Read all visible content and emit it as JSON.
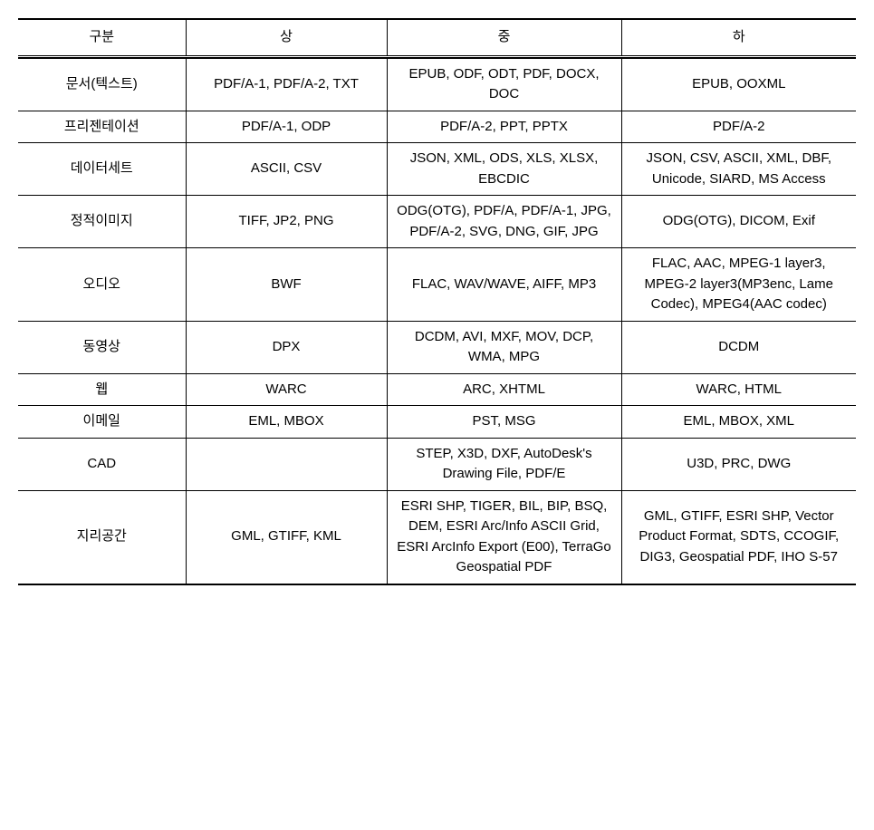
{
  "table": {
    "columns": [
      "구분",
      "상",
      "중",
      "하"
    ],
    "rows": [
      {
        "category": "문서(텍스트)",
        "high": "PDF/A-1, PDF/A-2, TXT",
        "mid": "EPUB, ODF, ODT, PDF, DOCX, DOC",
        "low": "EPUB, OOXML"
      },
      {
        "category": "프리젠테이션",
        "high": "PDF/A-1, ODP",
        "mid": "PDF/A-2, PPT, PPTX",
        "low": "PDF/A-2"
      },
      {
        "category": "데이터세트",
        "high": "ASCII, CSV",
        "mid": "JSON, XML, ODS, XLS, XLSX, EBCDIC",
        "low": "JSON, CSV, ASCII, XML, DBF, Unicode, SIARD, MS Access"
      },
      {
        "category": "정적이미지",
        "high": "TIFF, JP2, PNG",
        "mid": "ODG(OTG), PDF/A, PDF/A-1, JPG, PDF/A-2, SVG, DNG, GIF, JPG",
        "low": "ODG(OTG), DICOM, Exif"
      },
      {
        "category": "오디오",
        "high": "BWF",
        "mid": "FLAC, WAV/WAVE, AIFF, MP3",
        "low": "FLAC, AAC, MPEG-1 layer3, MPEG-2 layer3(MP3enc, Lame Codec), MPEG4(AAC codec)"
      },
      {
        "category": "동영상",
        "high": "DPX",
        "mid": "DCDM, AVI, MXF, MOV, DCP, WMA, MPG",
        "low": "DCDM"
      },
      {
        "category": "웹",
        "high": "WARC",
        "mid": "ARC, XHTML",
        "low": "WARC, HTML"
      },
      {
        "category": "이메일",
        "high": "EML, MBOX",
        "mid": "PST, MSG",
        "low": "EML, MBOX, XML"
      },
      {
        "category": "CAD",
        "high": "",
        "mid": "STEP, X3D, DXF, AutoDesk's Drawing File, PDF/E",
        "low": "U3D, PRC, DWG"
      },
      {
        "category": "지리공간",
        "high": "GML, GTIFF, KML",
        "mid": "ESRI SHP, TIGER, BIL, BIP, BSQ, DEM, ESRI Arc/Info ASCII Grid, ESRI ArcInfo Export (E00), TerraGo Geospatial PDF",
        "low": "GML, GTIFF, ESRI SHP, Vector Product Format, SDTS, CCOGIF, DIG3, Geospatial PDF, IHO S-57"
      }
    ]
  }
}
